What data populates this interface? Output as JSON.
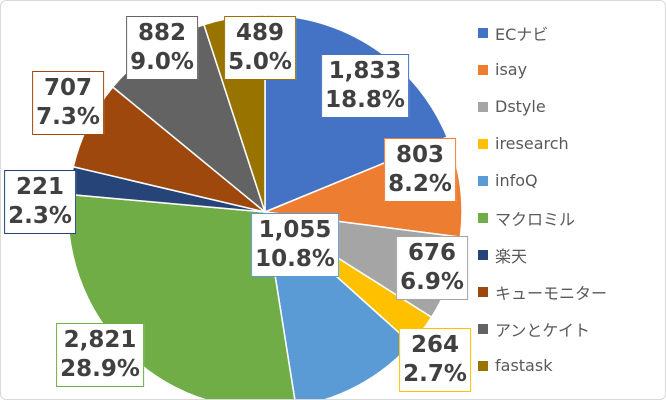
{
  "chart_data": {
    "type": "pie",
    "title": "",
    "start_angle": "12 o'clock, clockwise",
    "legend_position": "right",
    "slices": [
      {
        "name": "ECナビ",
        "value": 1833,
        "value_label": "1,833",
        "percent_label": "18.8%",
        "color": "#4472C4"
      },
      {
        "name": "isay",
        "value": 803,
        "value_label": "803",
        "percent_label": "8.2%",
        "color": "#ED7D31"
      },
      {
        "name": "Dstyle",
        "value": 676,
        "value_label": "676",
        "percent_label": "6.9%",
        "color": "#A5A5A5"
      },
      {
        "name": "iresearch",
        "value": 264,
        "value_label": "264",
        "percent_label": "2.7%",
        "color": "#FFC000"
      },
      {
        "name": "infoQ",
        "value": 1055,
        "value_label": "1,055",
        "percent_label": "10.8%",
        "color": "#5B9BD5"
      },
      {
        "name": "マクロミル",
        "value": 2821,
        "value_label": "2,821",
        "percent_label": "28.9%",
        "color": "#70AD47"
      },
      {
        "name": "楽天",
        "value": 221,
        "value_label": "221",
        "percent_label": "2.3%",
        "color": "#264478"
      },
      {
        "name": "キューモニター",
        "value": 707,
        "value_label": "707",
        "percent_label": "7.3%",
        "color": "#9E480E"
      },
      {
        "name": "アンとケイト",
        "value": 882,
        "value_label": "882",
        "percent_label": "9.0%",
        "color": "#636363"
      },
      {
        "name": "fastask",
        "value": 489,
        "value_label": "489",
        "percent_label": "5.0%",
        "color": "#997300"
      }
    ]
  }
}
